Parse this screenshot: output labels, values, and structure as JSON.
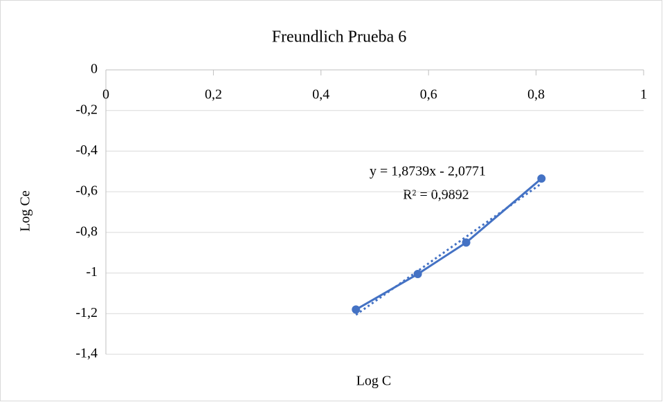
{
  "chart_data": {
    "type": "scatter",
    "title": "Freundlich Prueba 6",
    "x_label": "Log C",
    "y_label": "Log Ce",
    "series": [
      {
        "name": "Log Ce",
        "color": "#4472c4",
        "x": [
          0.465,
          0.58,
          0.67,
          0.81
        ],
        "values": [
          -1.18,
          -1.005,
          -0.85,
          -0.535
        ]
      }
    ],
    "trendline": {
      "slope": 1.8739,
      "intercept": -2.0771,
      "style": "dotted",
      "equation": "y = 1,8739x - 2,0771",
      "r2": "R² = 0,9892"
    },
    "xlim": [
      0,
      1
    ],
    "xticks": [
      0,
      {
        "value": 0.2,
        "label": "0,2"
      },
      {
        "value": 0.4,
        "label": "0,4"
      },
      {
        "value": 0.6,
        "label": "0,6"
      },
      {
        "value": 0.8,
        "label": "0,8"
      },
      1
    ],
    "ylim": [
      -1.4,
      0
    ],
    "yticks": [
      0,
      {
        "value": -0.2,
        "label": "-0,2"
      },
      {
        "value": -0.4,
        "label": "-0,4"
      },
      {
        "value": -0.6,
        "label": "-0,6"
      },
      {
        "value": -0.8,
        "label": "-0,8"
      },
      -1,
      {
        "value": -1.2,
        "label": "-1,2"
      },
      {
        "value": -1.4,
        "label": "-1,4"
      }
    ],
    "grid": true
  }
}
